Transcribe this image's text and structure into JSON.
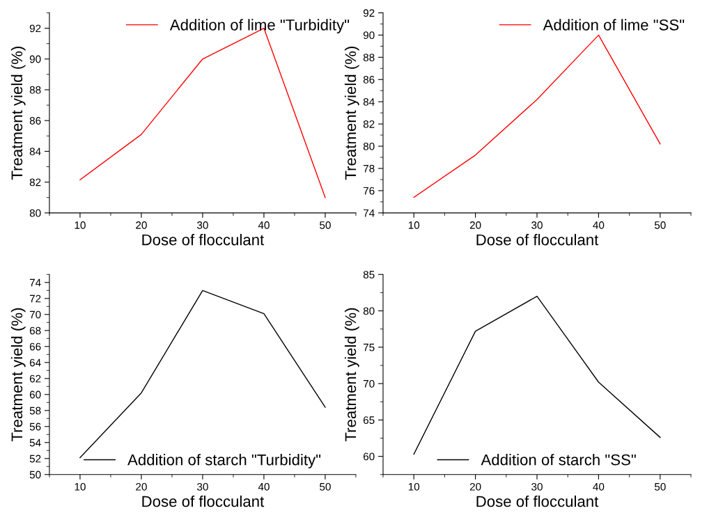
{
  "chart_data": [
    {
      "type": "line",
      "xlabel": "Dose of flocculant",
      "ylabel": "Treatment yield (%)",
      "x": [
        10,
        20,
        30,
        40,
        50
      ],
      "xlim": [
        5,
        55
      ],
      "xticks": [
        10,
        20,
        30,
        40,
        50
      ],
      "ylim": [
        80,
        93
      ],
      "yticks": [
        80,
        82,
        84,
        86,
        88,
        90,
        92
      ],
      "legend": "top right",
      "grid": false,
      "series": [
        {
          "name": "Addition of lime \"Turbidity\"",
          "color": "#ff0000",
          "values": [
            82.15,
            85.1,
            90.0,
            92.0,
            81.0
          ]
        }
      ]
    },
    {
      "type": "line",
      "xlabel": "Dose of flocculant",
      "ylabel": "Treatment yield (%)",
      "x": [
        10,
        20,
        30,
        40,
        50
      ],
      "xlim": [
        5,
        55
      ],
      "xticks": [
        10,
        20,
        30,
        40,
        50
      ],
      "ylim": [
        74,
        92
      ],
      "yticks": [
        74,
        76,
        78,
        80,
        82,
        84,
        86,
        88,
        90,
        92
      ],
      "legend": "top right",
      "grid": false,
      "series": [
        {
          "name": "Addition of lime \"SS\"",
          "color": "#ff0000",
          "values": [
            75.4,
            79.2,
            84.2,
            90.0,
            80.2
          ]
        }
      ]
    },
    {
      "type": "line",
      "xlabel": "Dose of flocculant",
      "ylabel": "Treatment yield (%)",
      "x": [
        10,
        20,
        30,
        40,
        50
      ],
      "xlim": [
        5,
        55
      ],
      "xticks": [
        10,
        20,
        30,
        40,
        50
      ],
      "ylim": [
        50,
        75
      ],
      "yticks": [
        50,
        52,
        54,
        56,
        58,
        60,
        62,
        64,
        66,
        68,
        70,
        72,
        74
      ],
      "legend": "bottom",
      "grid": false,
      "series": [
        {
          "name": "Addition of starch \"Turbidity\"",
          "color": "#000000",
          "values": [
            52.1,
            60.2,
            73.0,
            70.1,
            58.4
          ]
        }
      ]
    },
    {
      "type": "line",
      "xlabel": "Dose of flocculant",
      "ylabel": "Treatment yield (%)",
      "x": [
        10,
        20,
        30,
        40,
        50
      ],
      "xlim": [
        5,
        55
      ],
      "xticks": [
        10,
        20,
        30,
        40,
        50
      ],
      "ylim": [
        57.5,
        85
      ],
      "yticks": [
        60,
        65,
        70,
        75,
        80,
        85
      ],
      "legend": "bottom",
      "grid": false,
      "series": [
        {
          "name": "Addition of starch \"SS\"",
          "color": "#000000",
          "values": [
            60.3,
            77.2,
            82.0,
            70.2,
            62.6
          ]
        }
      ]
    }
  ]
}
